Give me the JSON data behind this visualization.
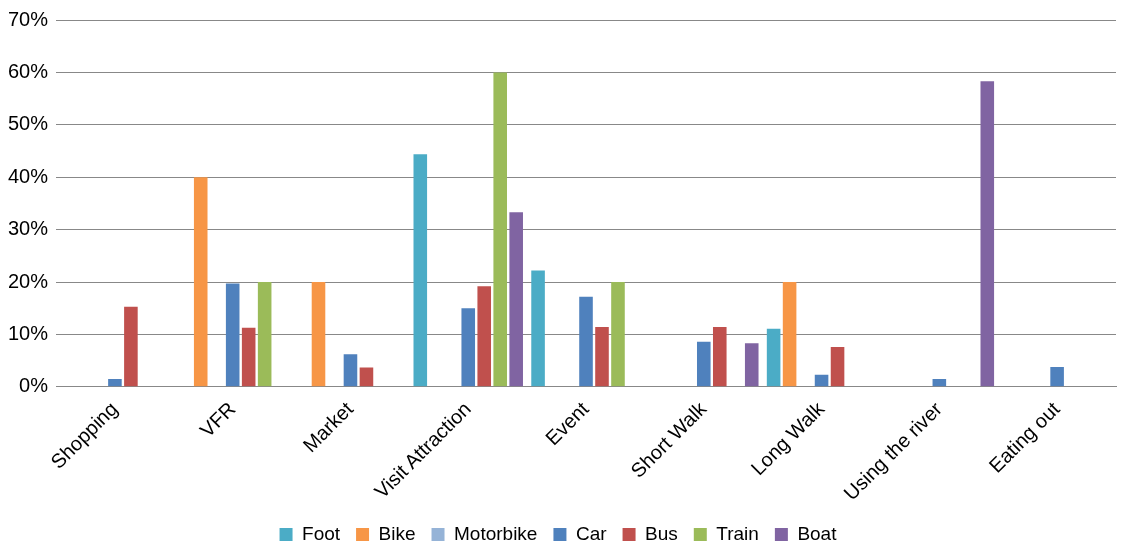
{
  "chart_data": {
    "type": "bar",
    "categories": [
      "Shopping",
      "VFR",
      "Market",
      "Visit Attraction",
      "Event",
      "Short Walk",
      "Long Walk",
      "Using the river",
      "Eating out"
    ],
    "series": [
      {
        "name": "Foot",
        "color": "#4bacc6",
        "values": [
          null,
          null,
          null,
          44.4,
          22.2,
          null,
          11.1,
          null,
          null
        ]
      },
      {
        "name": "Bike",
        "color": "#f79646",
        "values": [
          null,
          40,
          20,
          null,
          null,
          null,
          20,
          null,
          null
        ]
      },
      {
        "name": "Motorbike",
        "color": "#95b3d7",
        "values": [
          null,
          null,
          null,
          null,
          null,
          null,
          null,
          null,
          null
        ]
      },
      {
        "name": "Car",
        "color": "#4f81bd",
        "values": [
          1.5,
          19.7,
          6.2,
          15,
          17.2,
          8.6,
          2.3,
          1.5,
          3.8
        ]
      },
      {
        "name": "Bus",
        "color": "#c0504d",
        "values": [
          15.3,
          11.3,
          3.7,
          19.2,
          11.4,
          11.4,
          7.6,
          null,
          null
        ]
      },
      {
        "name": "Train",
        "color": "#9bbb59",
        "values": [
          null,
          20,
          null,
          60,
          20,
          null,
          null,
          null,
          null
        ]
      },
      {
        "name": "Boat",
        "color": "#8064a2",
        "values": [
          null,
          null,
          null,
          33.3,
          null,
          8.3,
          null,
          58.3,
          null
        ]
      }
    ],
    "ylim": [
      0,
      70
    ],
    "yticks": [
      {
        "value": 0,
        "label": "0%"
      },
      {
        "value": 10,
        "label": "10%"
      },
      {
        "value": 20,
        "label": "20%"
      },
      {
        "value": 30,
        "label": "30%"
      },
      {
        "value": 40,
        "label": "40%"
      },
      {
        "value": 50,
        "label": "50%"
      },
      {
        "value": 60,
        "label": "60%"
      },
      {
        "value": 70,
        "label": "70%"
      }
    ],
    "grid": "y",
    "legend": "bottom"
  }
}
